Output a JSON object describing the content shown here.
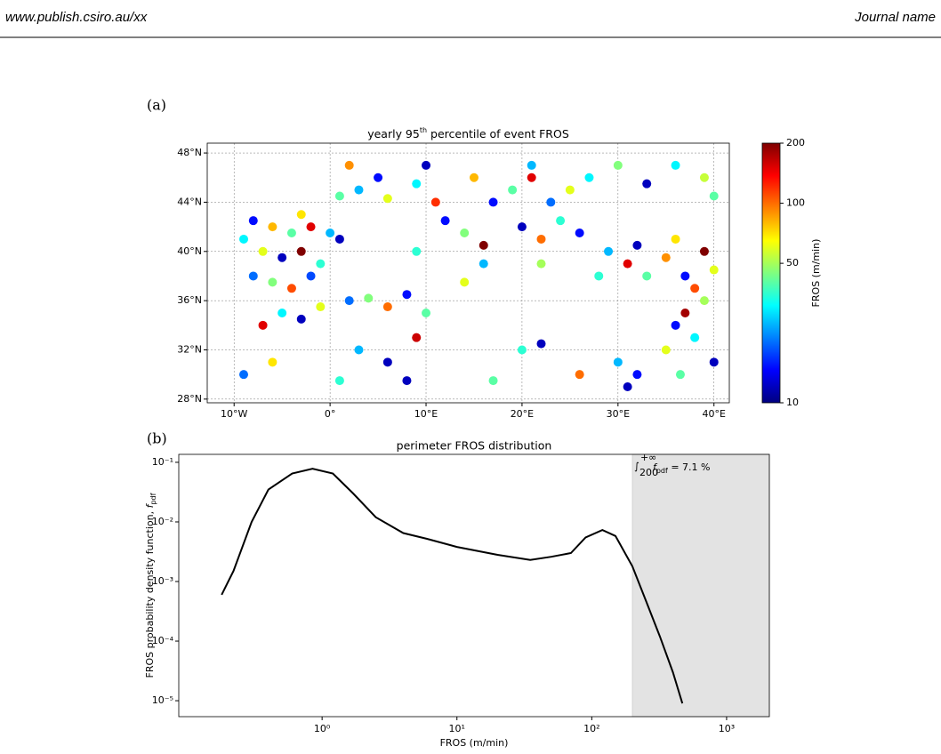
{
  "header": {
    "left": "www.publish.csiro.au/xx",
    "right": "Journal name"
  },
  "chart_data": [
    {
      "type": "hexmap",
      "panel_label": "(a)",
      "title": "yearly 95",
      "title_sup": "th",
      "title_end": " percentile of event FROS",
      "xlim": [
        -12.8,
        41.6
      ],
      "ylim": [
        27.7,
        48.8
      ],
      "xticks": [
        {
          "value": -10,
          "label": "10°W"
        },
        {
          "value": 0,
          "label": "0°"
        },
        {
          "value": 10,
          "label": "10°E"
        },
        {
          "value": 20,
          "label": "20°E"
        },
        {
          "value": 30,
          "label": "30°E"
        },
        {
          "value": 40,
          "label": "40°E"
        }
      ],
      "yticks": [
        {
          "value": 28,
          "label": "28°N"
        },
        {
          "value": 32,
          "label": "32°N"
        },
        {
          "value": 36,
          "label": "36°N"
        },
        {
          "value": 40,
          "label": "40°N"
        },
        {
          "value": 44,
          "label": "44°N"
        },
        {
          "value": 48,
          "label": "48°N"
        }
      ],
      "grid": true,
      "colormap": "jet",
      "colorscale": "log",
      "clim": [
        10,
        200
      ],
      "cticks": [
        10,
        50,
        100,
        200
      ],
      "colorbar_label": "FROS (m/min)",
      "lon": [
        -8,
        -6,
        -4,
        -2,
        0,
        -7,
        -5,
        -3,
        -1,
        -8,
        -6,
        -4,
        -2,
        -9,
        -3,
        1,
        1,
        3,
        5,
        2,
        6,
        9,
        11,
        12,
        14,
        16,
        16,
        14,
        9,
        10,
        15,
        17,
        19,
        21,
        23,
        25,
        27,
        20,
        22,
        24,
        26,
        22,
        21,
        29,
        31,
        33,
        35,
        37,
        39,
        40,
        28,
        32,
        36,
        38,
        30,
        33,
        36,
        39,
        40,
        -7,
        -5,
        -3,
        -1,
        2,
        4,
        6,
        8,
        10,
        9,
        3,
        6,
        -6,
        -9,
        1,
        8,
        35,
        36,
        37,
        38,
        39,
        40,
        36.5,
        20,
        22,
        30,
        32,
        17,
        26,
        31
      ],
      "lat": [
        42.5,
        42,
        41.5,
        42,
        41.5,
        40,
        39.5,
        40,
        39,
        38,
        37.5,
        37,
        38,
        41,
        43,
        41,
        44.5,
        45,
        46,
        47,
        44.3,
        45.5,
        44,
        42.5,
        41.5,
        40.5,
        39,
        37.5,
        40,
        47,
        46,
        44,
        45,
        46,
        44,
        45,
        46,
        42,
        41,
        42.5,
        41.5,
        39,
        47,
        40,
        39,
        38,
        39.5,
        38,
        40,
        38.5,
        38,
        40.5,
        41,
        37,
        47,
        45.5,
        47,
        46,
        44.5,
        34,
        35,
        34.5,
        35.5,
        36,
        36.2,
        35.5,
        36.5,
        35,
        33,
        32,
        31,
        31,
        30,
        29.5,
        29.5,
        32,
        34,
        35,
        33,
        36,
        31,
        30,
        32,
        32.5,
        31,
        30,
        29.5,
        30,
        29
      ],
      "values": [
        15,
        80,
        40,
        150,
        25,
        60,
        12,
        200,
        35,
        20,
        45,
        110,
        18,
        30,
        70,
        12,
        40,
        25,
        15,
        90,
        60,
        30,
        120,
        15,
        45,
        200,
        25,
        60,
        35,
        12,
        80,
        15,
        40,
        150,
        20,
        60,
        30,
        12,
        100,
        35,
        15,
        50,
        25,
        25,
        150,
        40,
        90,
        15,
        200,
        60,
        35,
        12,
        70,
        110,
        45,
        12,
        30,
        55,
        40,
        150,
        30,
        12,
        60,
        20,
        45,
        100,
        15,
        40,
        160,
        25,
        12,
        70,
        20,
        35,
        12,
        60,
        15,
        180,
        30,
        50,
        12,
        40,
        35,
        12,
        25,
        15,
        40,
        100,
        12
      ]
    },
    {
      "type": "line",
      "panel_label": "(b)",
      "title": "perimeter FROS distribution",
      "xlabel": "FROS (m/min)",
      "ylabel": "FROS probability density function, ",
      "ylabel_var": "f",
      "ylabel_sub": "pdf",
      "xscale": "log",
      "yscale": "log",
      "xlim": [
        0.0865,
        2075
      ],
      "ylim": [
        5.4e-06,
        0.136
      ],
      "xticks": [
        {
          "value": 1,
          "label": "10⁰"
        },
        {
          "value": 10,
          "label": "10¹"
        },
        {
          "value": 100,
          "label": "10²"
        },
        {
          "value": 1000,
          "label": "10³"
        }
      ],
      "yticks": [
        {
          "value": 1e-05,
          "label": "10⁻⁵"
        },
        {
          "value": 0.0001,
          "label": "10⁻⁴"
        },
        {
          "value": 0.001,
          "label": "10⁻³"
        },
        {
          "value": 0.01,
          "label": "10⁻²"
        },
        {
          "value": 0.1,
          "label": "10⁻¹"
        }
      ],
      "shade_from": 200,
      "shade_color": "#e3e3e3",
      "annotation": {
        "lower": "200",
        "upper": "+∞",
        "var": "f",
        "sub": "pdf",
        "rest": " = 7.1 %"
      },
      "series": [
        {
          "color": "#000000",
          "x": [
            0.18,
            0.22,
            0.3,
            0.4,
            0.6,
            0.85,
            1.2,
            1.7,
            2.5,
            4,
            6,
            10,
            20,
            35,
            50,
            70,
            90,
            120,
            150,
            200,
            250,
            320,
            400,
            470
          ],
          "values": [
            0.0006,
            0.0015,
            0.01,
            0.035,
            0.065,
            0.078,
            0.065,
            0.03,
            0.012,
            0.0065,
            0.0052,
            0.0038,
            0.0028,
            0.0023,
            0.0026,
            0.003,
            0.0055,
            0.0073,
            0.0058,
            0.0018,
            0.0005,
            0.00012,
            3e-05,
            9e-06
          ]
        }
      ]
    }
  ]
}
